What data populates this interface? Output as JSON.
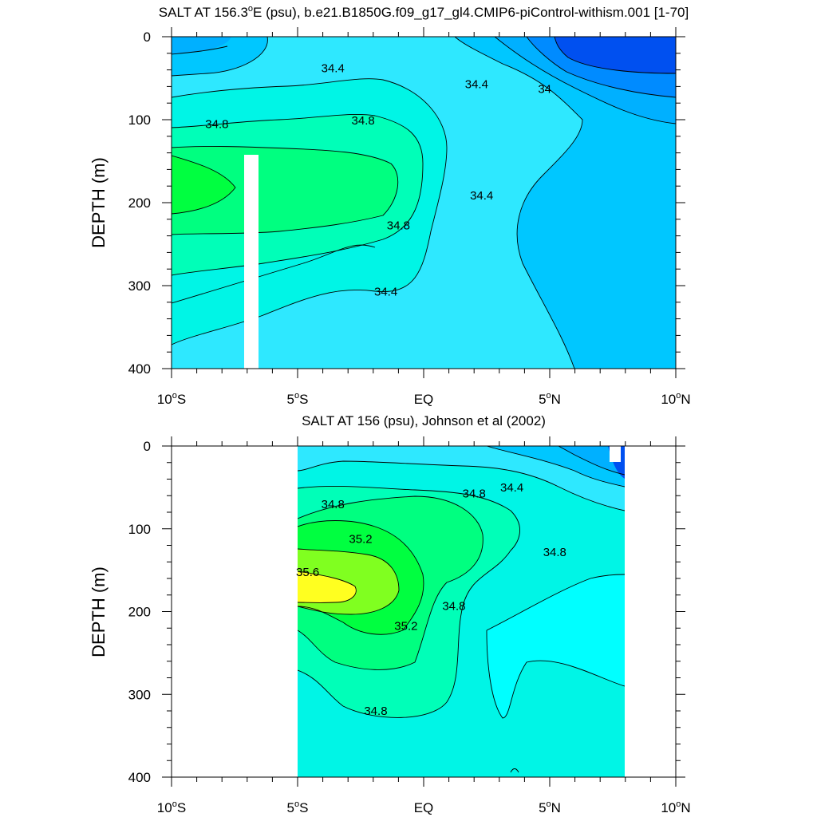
{
  "chart_data": [
    {
      "type": "heatmap",
      "title": "SALT AT 156.3°E (psu), b.e21.B1850G.f09_g17_gl4.CMIP6-piControl-withism.001 [1-70]",
      "title_main": "SALT AT 156.3",
      "title_sup": "o",
      "title_rest": "E (psu), b.e21.B1850G.f09_g17_gl4.CMIP6-piControl-withism.001 [1-70]",
      "ylabel": "DEPTH (m)",
      "xlim": [
        -10,
        10
      ],
      "ylim": [
        400,
        0
      ],
      "x_ticks": [
        {
          "value": -10,
          "num": "10",
          "deg": "o",
          "hem": "S"
        },
        {
          "value": -5,
          "num": "5",
          "deg": "o",
          "hem": "S"
        },
        {
          "value": 0,
          "num": "EQ",
          "deg": "",
          "hem": ""
        },
        {
          "value": 5,
          "num": "5",
          "deg": "o",
          "hem": "N"
        },
        {
          "value": 10,
          "num": "10",
          "deg": "o",
          "hem": "N"
        }
      ],
      "y_ticks": [
        "0",
        "100",
        "200",
        "300",
        "400"
      ],
      "contour_labels": [
        {
          "text": "34.4",
          "x": -3.6,
          "y": 43
        },
        {
          "text": "34.4",
          "x": 2.1,
          "y": 62
        },
        {
          "text": "34",
          "x": 4.8,
          "y": 68
        },
        {
          "text": "34.8",
          "x": -8.2,
          "y": 110
        },
        {
          "text": "34.8",
          "x": -2.4,
          "y": 106
        },
        {
          "text": "34.4",
          "x": 2.3,
          "y": 196
        },
        {
          "text": "34.8",
          "x": -1.0,
          "y": 232
        },
        {
          "text": "34.4",
          "x": -1.5,
          "y": 312
        }
      ]
    },
    {
      "type": "heatmap",
      "title": "SALT AT 156 (psu), Johnson et al (2002)",
      "ylabel": "DEPTH (m)",
      "xlim": [
        -10,
        10
      ],
      "ylim": [
        400,
        0
      ],
      "x_ticks": [
        {
          "value": -10,
          "num": "10",
          "deg": "o",
          "hem": "S"
        },
        {
          "value": -5,
          "num": "5",
          "deg": "o",
          "hem": "S"
        },
        {
          "value": 0,
          "num": "EQ",
          "deg": "",
          "hem": ""
        },
        {
          "value": 5,
          "num": "5",
          "deg": "o",
          "hem": "N"
        },
        {
          "value": 10,
          "num": "10",
          "deg": "o",
          "hem": "N"
        }
      ],
      "y_ticks": [
        "0",
        "100",
        "200",
        "300",
        "400"
      ],
      "contour_labels": [
        {
          "text": "34.4",
          "x": 3.5,
          "y": 55
        },
        {
          "text": "34.8",
          "x": -3.6,
          "y": 75
        },
        {
          "text": "34.8",
          "x": 2.0,
          "y": 62
        },
        {
          "text": "35.2",
          "x": -2.5,
          "y": 117
        },
        {
          "text": "34.8",
          "x": 5.2,
          "y": 133
        },
        {
          "text": "35.6",
          "x": -4.6,
          "y": 157
        },
        {
          "text": "35.2",
          "x": -0.7,
          "y": 222
        },
        {
          "text": "34.8",
          "x": 1.2,
          "y": 198
        },
        {
          "text": "34.8",
          "x": -1.9,
          "y": 325
        }
      ]
    }
  ]
}
